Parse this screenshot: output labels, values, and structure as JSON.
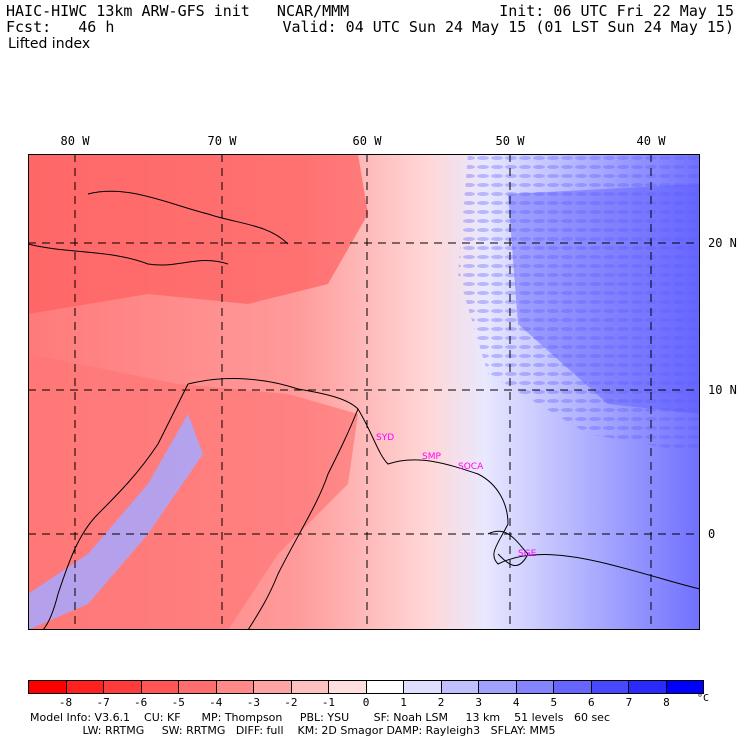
{
  "header": {
    "line1_left": "HAIC-HIWC 13km ARW-GFS init   NCAR/MMM",
    "line1_right": "Init: 06 UTC Fri 22 May 15",
    "line2_left": "Fcst:   46 h",
    "line2_right": "Valid: 04 UTC Sun 24 May 15 (01 LST Sun 24 May 15)",
    "field_name": "Lifted index"
  },
  "map": {
    "longitude_labels": [
      "80 W",
      "70 W",
      "60 W",
      "50 W",
      "40 W"
    ],
    "latitude_labels": [
      "20 N",
      "10 N",
      "0"
    ],
    "station_labels": [
      "SYD",
      "SMP",
      "SOCA",
      "SGE"
    ],
    "station_color": "#ff00ff",
    "gridline_style": "dashed"
  },
  "colorbar": {
    "tick_labels": [
      "-8",
      "-7",
      "-6",
      "-5",
      "-4",
      "-3",
      "-2",
      "-1",
      "0",
      "1",
      "2",
      "3",
      "4",
      "5",
      "6",
      "7",
      "8"
    ],
    "unit": "°C",
    "colors": [
      "#ff0000",
      "#ff2020",
      "#ff3c3c",
      "#ff5555",
      "#ff6e6e",
      "#ff8888",
      "#ffa4a4",
      "#ffc0c0",
      "#ffdede",
      "#ffffff",
      "#dedeff",
      "#c0c0ff",
      "#a0a0ff",
      "#8484ff",
      "#6666ff",
      "#4848ff",
      "#2a2aff",
      "#0000ff"
    ]
  },
  "footer": {
    "line1": "Model Info: V3.6.1    CU: KF      MP: Thompson     PBL: YSU       SF: Noah LSM     13 km    51 levels   60 sec",
    "line2": "               LW: RRTMG     SW: RRTMG   DIFF: full    KM: 2D Smagor DAMP: Rayleigh3   SFLAY: MM5"
  }
}
